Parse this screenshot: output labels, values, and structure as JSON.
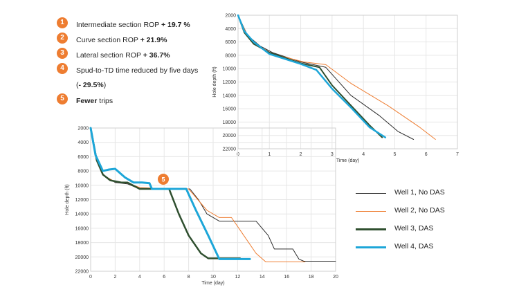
{
  "bullets": [
    {
      "num": "1",
      "text": "Intermediate section ROP ",
      "bold": "+ 19.7 %"
    },
    {
      "num": "2",
      "text": "Curve section ROP ",
      "bold": "+ 21.9%"
    },
    {
      "num": "3",
      "text": "Lateral section ROP ",
      "bold": "+ 36.7%"
    },
    {
      "num": "4",
      "text": "Spud-to-TD time reduced by five days (",
      "bold": "- 29.5%",
      "text_after": ")"
    },
    {
      "num": "5",
      "text": "",
      "bold": "Fewer",
      "text_after": " trips"
    }
  ],
  "marker5": "5",
  "legend": [
    {
      "label": "Well 1, No DAS",
      "color": "#2b2b2b"
    },
    {
      "label": "Well 2, No DAS",
      "color": "#ee7d31"
    },
    {
      "label": "Well 3, DAS",
      "color": "#2f4f2f"
    },
    {
      "label": "Well 4, DAS",
      "color": "#1da6d8"
    }
  ],
  "chart_data": [
    {
      "type": "line",
      "xlabel": "Time (day)",
      "ylabel": "Hole depth (ft)",
      "xlim": [
        0,
        7
      ],
      "ylim": [
        22000,
        2000
      ],
      "xticks": [
        0,
        1,
        2,
        3,
        4,
        5,
        6,
        7
      ],
      "yticks": [
        2000,
        4000,
        6000,
        8000,
        10000,
        12000,
        14000,
        16000,
        18000,
        20000,
        22000
      ],
      "series": [
        {
          "name": "Well 1, No DAS",
          "color": "#2b2b2b",
          "width": 1,
          "x": [
            0,
            0.3,
            0.7,
            1.1,
            2.0,
            2.8,
            3.6,
            4.5,
            5.1,
            5.6
          ],
          "y": [
            2000,
            5000,
            6600,
            7600,
            9000,
            9800,
            14000,
            17000,
            19400,
            20600
          ]
        },
        {
          "name": "Well 2, No DAS",
          "color": "#ee7d31",
          "width": 1,
          "x": [
            0,
            0.3,
            0.7,
            1.1,
            2.1,
            2.8,
            3.6,
            4.8,
            5.8,
            6.3
          ],
          "y": [
            2000,
            5100,
            6700,
            7800,
            9000,
            9400,
            12200,
            15600,
            18800,
            20600
          ]
        },
        {
          "name": "Well 3, DAS",
          "color": "#2f4f2f",
          "width": 2,
          "x": [
            0,
            0.2,
            0.5,
            1.0,
            2.0,
            2.6,
            3.0,
            3.6,
            4.2,
            4.6
          ],
          "y": [
            2000,
            4600,
            6300,
            7600,
            9200,
            9800,
            12500,
            15500,
            18500,
            20300
          ]
        },
        {
          "name": "Well 4, DAS",
          "color": "#1da6d8",
          "width": 2.5,
          "x": [
            0,
            0.2,
            0.5,
            1.0,
            2.0,
            2.5,
            3.0,
            3.6,
            4.2,
            4.7
          ],
          "y": [
            2000,
            4400,
            6000,
            7800,
            9300,
            10200,
            13000,
            15800,
            18800,
            20300
          ]
        }
      ]
    },
    {
      "type": "line",
      "xlabel": "Time (day)",
      "ylabel": "Hole depth (ft)",
      "xlim": [
        0,
        20
      ],
      "ylim": [
        22000,
        2000
      ],
      "xticks": [
        0,
        2,
        4,
        6,
        8,
        10,
        12,
        14,
        16,
        18,
        20
      ],
      "yticks": [
        2000,
        4000,
        6000,
        8000,
        10000,
        12000,
        14000,
        16000,
        18000,
        20000,
        22000
      ],
      "series": [
        {
          "name": "Well 1, No DAS",
          "color": "#2b2b2b",
          "width": 1,
          "x": [
            0,
            0.5,
            1,
            2,
            3,
            4,
            6,
            8.1,
            8.8,
            9.5,
            10.5,
            13.5,
            14.5,
            15,
            15.8,
            16.5,
            17.0,
            17.4,
            20
          ],
          "y": [
            2000,
            6500,
            8500,
            9600,
            9800,
            10500,
            10500,
            10500,
            12000,
            14000,
            15000,
            15000,
            17000,
            18900,
            18900,
            18900,
            20300,
            20600,
            20600
          ]
        },
        {
          "name": "Well 2, No DAS",
          "color": "#ee7d31",
          "width": 1,
          "x": [
            0,
            0.5,
            1,
            2,
            3,
            4,
            6,
            8.0,
            9.5,
            10.5,
            11.5,
            12.5,
            13.5,
            14.3,
            17.5
          ],
          "y": [
            2000,
            6600,
            8600,
            9500,
            9700,
            10300,
            10500,
            10500,
            13500,
            14500,
            14500,
            17000,
            19500,
            20700,
            20700
          ]
        },
        {
          "name": "Well 3, DAS",
          "color": "#2f4f2f",
          "width": 2.5,
          "x": [
            0,
            0.5,
            1,
            1.6,
            2.5,
            3,
            4,
            5,
            6.4,
            7.2,
            8.0,
            9.0,
            9.6,
            12.2
          ],
          "y": [
            2000,
            6500,
            8500,
            9300,
            9600,
            9600,
            10500,
            10500,
            10500,
            14000,
            17000,
            19500,
            20200,
            20200
          ]
        },
        {
          "name": "Well 4, DAS",
          "color": "#1da6d8",
          "width": 3,
          "x": [
            0,
            0.4,
            1,
            1.5,
            2.0,
            2.8,
            3.5,
            4.2,
            4.8,
            5.0,
            6.0,
            7.8,
            8.6,
            9.6,
            10.5,
            12.6,
            13.0
          ],
          "y": [
            2000,
            5800,
            8000,
            7800,
            7700,
            8900,
            9600,
            9600,
            9700,
            10500,
            10500,
            10500,
            13500,
            17000,
            20300,
            20300,
            20300
          ]
        }
      ]
    }
  ]
}
